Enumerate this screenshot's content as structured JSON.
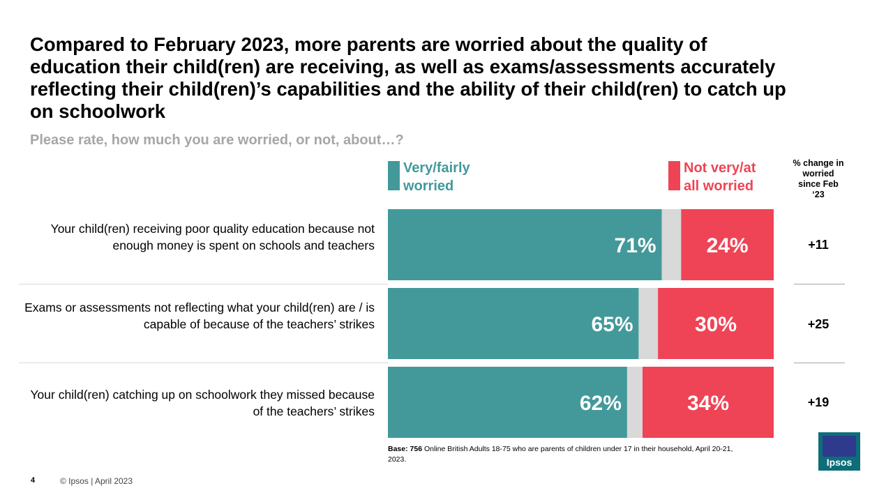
{
  "title": "Compared to February 2023, more parents are worried about the quality of education their child(ren) are receiving, as well as exams/assessments accurately reflecting their child(ren)’s capabilities and the ability of their child(ren) to catch up on schoolwork",
  "subtitle": "Please rate, how much you are worried, or not, about…?",
  "legend": {
    "worried_label": "Very/fairly worried",
    "not_worried_label": "Not very/at all worried",
    "worried_color": "#43999a",
    "not_worried_color": "#ef4455",
    "neutral_color": "#d9d9d9"
  },
  "change_header": "% change in worried since Feb ‘23",
  "chart_data": {
    "type": "bar",
    "orientation": "horizontal",
    "stacked": true,
    "categories": [
      "Your child(ren) receiving poor quality education because not enough money is spent on schools and teachers",
      "Exams or assessments not reflecting what your child(ren) are / is capable of because of the teachers’ strikes",
      "Your child(ren) catching up on schoolwork they missed because of the teachers’ strikes"
    ],
    "series": [
      {
        "name": "Very/fairly worried",
        "values": [
          71,
          65,
          62
        ],
        "labels": [
          "71%",
          "65%",
          "62%"
        ]
      },
      {
        "values": [
          5,
          5,
          4
        ]
      },
      {
        "name": "Not very/at all worried",
        "values": [
          24,
          30,
          34
        ],
        "labels": [
          "24%",
          "30%",
          "34%"
        ]
      }
    ],
    "change_values": [
      "+11",
      "+25",
      "+19"
    ],
    "xlim": [
      0,
      100
    ]
  },
  "base_note": {
    "bold": "Base: 756",
    "text": " Online British Adults 18-75 who are parents of children under 17 in their household, April 20-21, 2023."
  },
  "footer": {
    "page_number": "4",
    "copyright": "© Ipsos | April 2023"
  },
  "logo_text": "Ipsos"
}
